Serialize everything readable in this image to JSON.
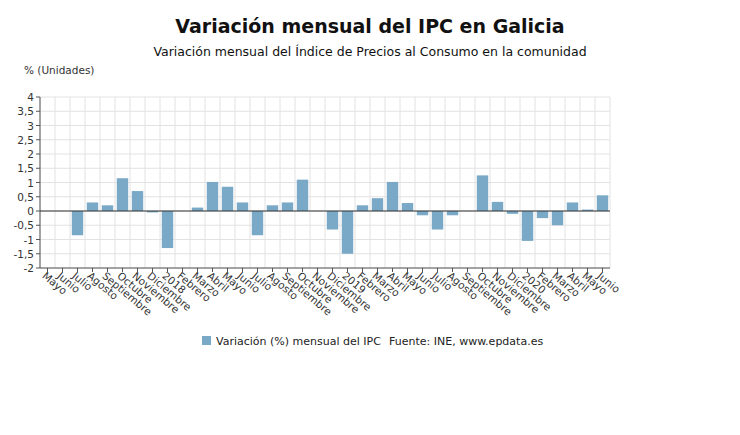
{
  "chart_data": {
    "type": "bar",
    "title": "Variación mensual del IPC en Galicia",
    "subtitle": "Variación mensual del Índice de Precios al Consumo en la comunidad",
    "y_label": "% (Unidades)",
    "source": "Fuente: INE, www.epdata.es",
    "categories": [
      "Mayo",
      "Junio",
      "Julio",
      "Agosto",
      "Septiembre",
      "Octubre",
      "Noviembre",
      "Diciembre",
      "2018",
      "Febrero",
      "Marzo",
      "Abril",
      "Mayo",
      "Junio",
      "Julio",
      "Agosto",
      "Septiembre",
      "Octubre",
      "Noviembre",
      "Diciembre",
      "2019",
      "Febrero",
      "Marzo",
      "Abril",
      "Mayo",
      "Junio",
      "Julio",
      "Agosto",
      "Septiembre",
      "Octubre",
      "Noviembre",
      "Diciembre",
      "2020",
      "Febrero",
      "Marzo",
      "Abril",
      "Mayo",
      "Junio"
    ],
    "series": [
      {
        "name": "Variación (%) mensual del IPC",
        "color": "#7aa9c8",
        "values": [
          null,
          null,
          -0.85,
          0.3,
          0.2,
          1.15,
          0.7,
          -0.05,
          -1.3,
          0,
          0.12,
          1.02,
          0.85,
          0.3,
          -0.85,
          0.2,
          0.3,
          1.1,
          0,
          -0.65,
          -1.5,
          0.2,
          0.45,
          1.02,
          0.28,
          -0.15,
          -0.65,
          -0.15,
          0,
          1.25,
          0.32,
          -0.1,
          -1.05,
          -0.25,
          -0.5,
          0.3,
          0.05,
          0.55
        ]
      }
    ],
    "ylim": [
      -2,
      4
    ],
    "yticks": [
      -2,
      {
        "value": -1.5,
        "label": "-1,5"
      },
      -1,
      {
        "value": -0.5,
        "label": "-0,5"
      },
      0,
      {
        "value": 0.5,
        "label": "0,5"
      },
      1,
      {
        "value": 1.5,
        "label": "1,5"
      },
      2,
      {
        "value": 2.5,
        "label": "2,5"
      },
      3,
      {
        "value": 3.5,
        "label": "3,5"
      },
      4
    ],
    "grid": true,
    "legend": "bottom"
  }
}
